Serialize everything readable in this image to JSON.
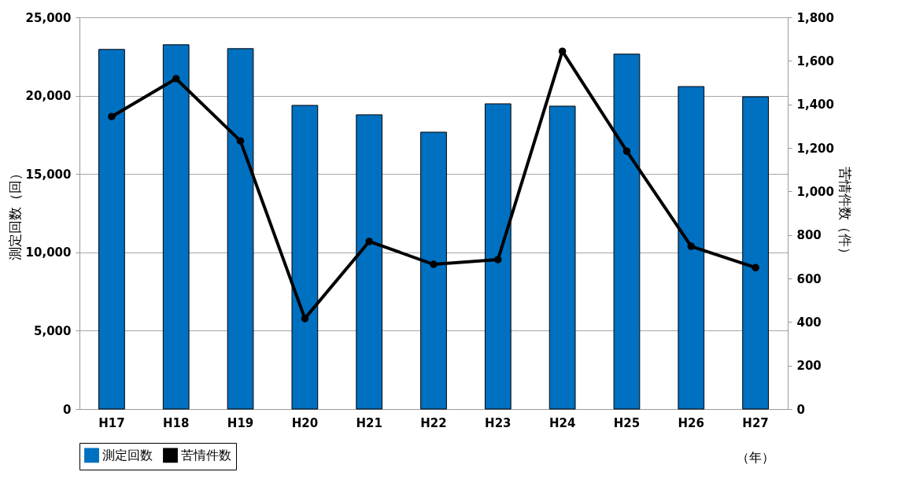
{
  "chart_data": {
    "type": "bar",
    "xlabel": null,
    "ylabel": "測定回数（回）",
    "y2label": "苦情件数（件）",
    "categories": [
      "H17",
      "H18",
      "H19",
      "H20",
      "H21",
      "H22",
      "H23",
      "H24",
      "H25",
      "H26",
      "H27"
    ],
    "series": [
      {
        "name": "測定回数",
        "color": "#0070c0",
        "values": [
          22950,
          23250,
          23000,
          19380,
          18780,
          17670,
          19480,
          19330,
          22650,
          20580,
          19930
        ]
      },
      {
        "name": "苦情件数",
        "type": "line",
        "axis": "y2",
        "color": "#000000",
        "marker": "circle",
        "values": [
          1344,
          1518,
          1232,
          416,
          770,
          665,
          687,
          1644,
          1185,
          748,
          650
        ]
      }
    ],
    "ylim": [
      0,
      25000
    ],
    "yticks": [
      0,
      {
        "value": 5000,
        "label": "5,000"
      },
      {
        "value": 10000,
        "label": "10,000"
      },
      {
        "value": 15000,
        "label": "15,000"
      },
      {
        "value": 20000,
        "label": "20,000"
      },
      {
        "value": 25000,
        "label": "25,000"
      }
    ],
    "y2lim": [
      0,
      1800
    ],
    "y2ticks": [
      0,
      200,
      400,
      600,
      800,
      {
        "value": 1000,
        "label": "1,000"
      },
      {
        "value": 1200,
        "label": "1,200"
      },
      {
        "value": 1400,
        "label": "1,400"
      },
      {
        "value": 1600,
        "label": "1,600"
      },
      {
        "value": 1800,
        "label": "1,800"
      }
    ],
    "grid": "y",
    "legend": "bottom",
    "annotations": [
      "（年）"
    ]
  }
}
